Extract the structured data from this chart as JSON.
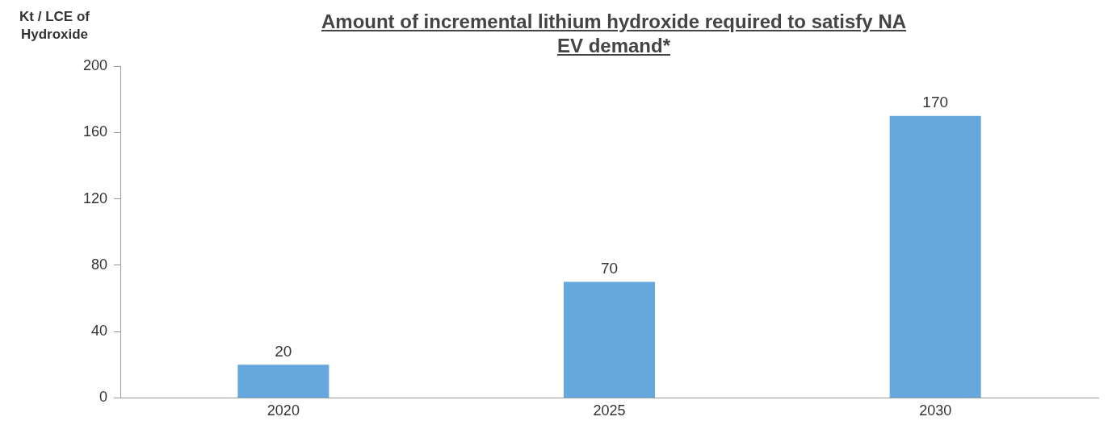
{
  "chart_data": {
    "type": "bar",
    "title": "Amount of incremental lithium hydroxide required to satisfy NA EV demand*",
    "ylabel": "Kt / LCE of Hydroxide",
    "categories": [
      "2020",
      "2025",
      "2030"
    ],
    "values": [
      20,
      70,
      170
    ],
    "color": "#66a8de",
    "ylim": [
      0,
      200
    ],
    "yticks": [
      0,
      40,
      80,
      120,
      160,
      200
    ],
    "grid": false,
    "data_labels": true,
    "legend": false
  }
}
